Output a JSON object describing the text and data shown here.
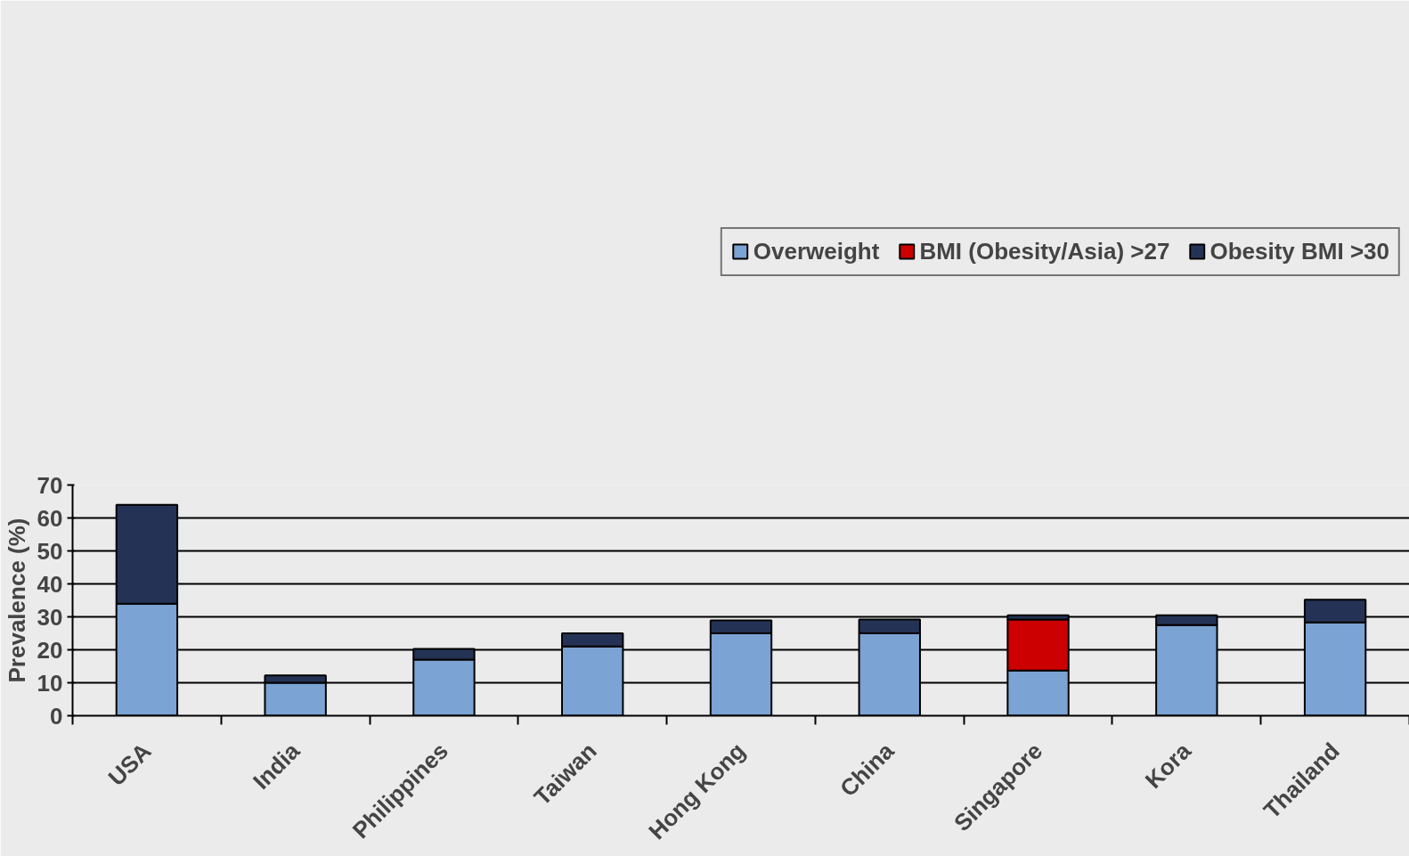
{
  "chart_data": {
    "type": "bar",
    "stacked": true,
    "ylabel": "Prevalence (%)",
    "categories": [
      "USA",
      "India",
      "Philippines",
      "Taiwan",
      "Hong Kong",
      "China",
      "Singapore",
      "Kora",
      "Thailand"
    ],
    "series": [
      {
        "name": "Overweight",
        "color": "#7ba3d3",
        "values": [
          34,
          10,
          17,
          21,
          25,
          25,
          13.7,
          27.5,
          28.3
        ]
      },
      {
        "name": "BMI (Obesity/Asia) >27",
        "color": "#cc0000",
        "values": [
          null,
          null,
          null,
          null,
          null,
          null,
          15.5,
          null,
          null
        ]
      },
      {
        "name": "Obesity BMI >30",
        "color": "#243355",
        "values": [
          30,
          2.2,
          3.3,
          4,
          3.9,
          4.2,
          1.3,
          3,
          6.9
        ]
      }
    ],
    "ylim": [
      0,
      70
    ],
    "yticks": [
      0,
      10,
      20,
      30,
      40,
      50,
      60,
      70
    ],
    "grid": "y",
    "legend": "top right"
  }
}
